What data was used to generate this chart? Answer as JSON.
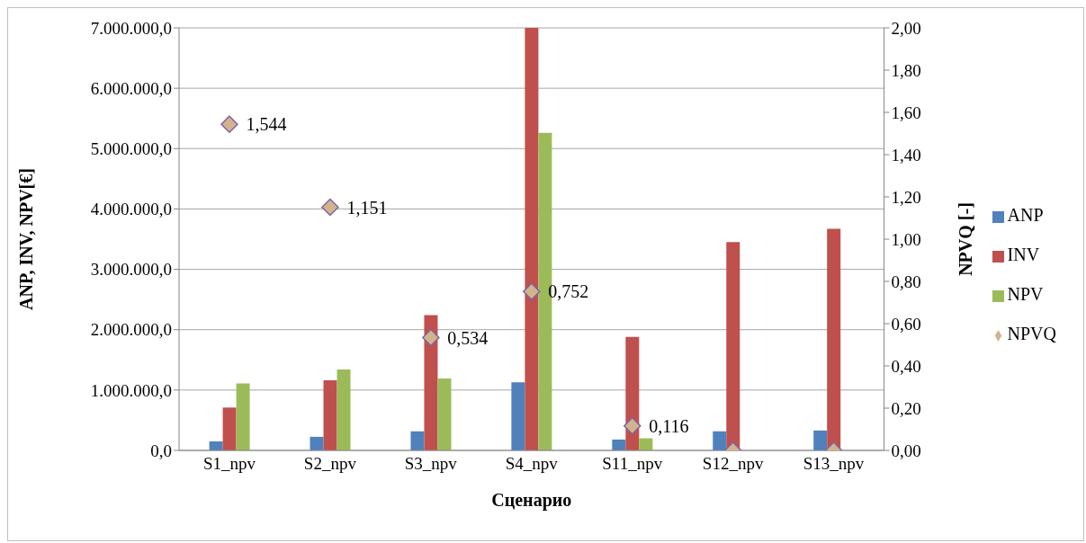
{
  "chart_data": {
    "type": "bar",
    "xlabel": "Сценарио",
    "ylabel": "ANP, INV, NPV[€]",
    "y2label": "NPVQ [-]",
    "categories": [
      "S1_npv",
      "S2_npv",
      "S3_npv",
      "S4_npv",
      "S11_npv",
      "S12_npv",
      "S13_npv"
    ],
    "series": [
      {
        "name": "ANP",
        "color": "#4f81bd",
        "values": [
          150000,
          225000,
          316000,
          1130000,
          180000,
          316000,
          330000
        ]
      },
      {
        "name": "INV",
        "color": "#c0504d",
        "values": [
          710000,
          1160000,
          2240000,
          7000000,
          1880000,
          3450000,
          3670000
        ]
      },
      {
        "name": "NPV",
        "color": "#9bbb59",
        "values": [
          1110000,
          1340000,
          1190000,
          5260000,
          200000,
          0,
          0
        ]
      },
      {
        "name": "NPVQ",
        "type": "scatter",
        "axis": "y2",
        "color": "#d2b48c",
        "marker": "diamond",
        "values": [
          1.544,
          1.151,
          0.534,
          0.752,
          0.116,
          0,
          0
        ],
        "value_labels": [
          "1,544",
          "1,151",
          "0,534",
          "0,752",
          "0,116",
          null,
          null
        ]
      }
    ],
    "ylim": [
      0,
      7000000
    ],
    "yticks": [
      {
        "value": 0,
        "label": "0,0"
      },
      {
        "value": 1000000,
        "label": "1.000.000,0"
      },
      {
        "value": 2000000,
        "label": "2.000.000,0"
      },
      {
        "value": 3000000,
        "label": "3.000.000,0"
      },
      {
        "value": 4000000,
        "label": "4.000.000,0"
      },
      {
        "value": 5000000,
        "label": "5.000.000,0"
      },
      {
        "value": 6000000,
        "label": "6.000.000,0"
      },
      {
        "value": 7000000,
        "label": "7.000.000,0"
      }
    ],
    "y2lim": [
      0,
      2
    ],
    "y2ticks": [
      {
        "value": 0,
        "label": "0,00"
      },
      {
        "value": 0.2,
        "label": "0,20"
      },
      {
        "value": 0.4,
        "label": "0,40"
      },
      {
        "value": 0.6,
        "label": "0,60"
      },
      {
        "value": 0.8,
        "label": "0,80"
      },
      {
        "value": 1,
        "label": "1,00"
      },
      {
        "value": 1.2,
        "label": "1,20"
      },
      {
        "value": 1.4,
        "label": "1,40"
      },
      {
        "value": 1.6,
        "label": "1,60"
      },
      {
        "value": 1.8,
        "label": "1,80"
      },
      {
        "value": 2,
        "label": "2,00"
      }
    ],
    "grid": "y",
    "legend": "right"
  }
}
